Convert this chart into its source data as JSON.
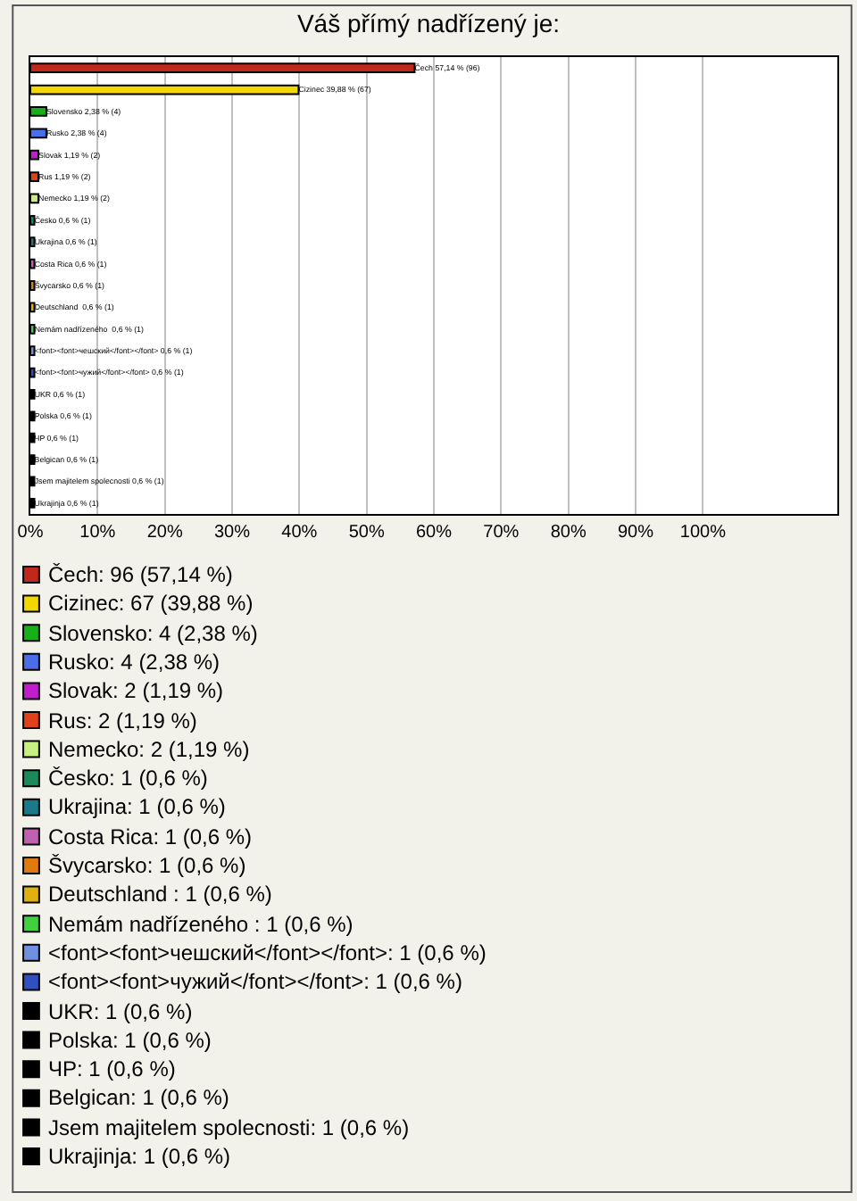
{
  "chart_data": {
    "type": "bar",
    "orientation": "horizontal",
    "title": "Váš přímý nadřízený je:",
    "categories": [
      null,
      null,
      null,
      null,
      null,
      null,
      null,
      null,
      null,
      null,
      null,
      null,
      null,
      null,
      null,
      null,
      null,
      null,
      null,
      null,
      null
    ],
    "series": [
      {
        "name": "Čech: 96 (57,14 %)",
        "color": "#c0281c",
        "values": [
          57.14,
          null,
          null,
          null,
          null,
          null,
          null,
          null,
          null,
          null,
          null,
          null,
          null,
          null,
          null,
          null,
          null,
          null,
          null,
          null,
          null
        ]
      },
      {
        "name": "Cizinec: 67 (39,88 %)",
        "color": "#f2d700",
        "values": [
          null,
          39.88,
          null,
          null,
          null,
          null,
          null,
          null,
          null,
          null,
          null,
          null,
          null,
          null,
          null,
          null,
          null,
          null,
          null,
          null,
          null
        ]
      },
      {
        "name": "Slovensko: 4 (2,38 %)",
        "color": "#18b018",
        "values": [
          null,
          null,
          2.38,
          null,
          null,
          null,
          null,
          null,
          null,
          null,
          null,
          null,
          null,
          null,
          null,
          null,
          null,
          null,
          null,
          null,
          null
        ]
      },
      {
        "name": "Rusko: 4 (2,38 %)",
        "color": "#4a6ee8",
        "values": [
          null,
          null,
          null,
          2.38,
          null,
          null,
          null,
          null,
          null,
          null,
          null,
          null,
          null,
          null,
          null,
          null,
          null,
          null,
          null,
          null,
          null
        ]
      },
      {
        "name": "Slovak: 2 (1,19 %)",
        "color": "#c21ccc",
        "values": [
          null,
          null,
          null,
          null,
          1.19,
          null,
          null,
          null,
          null,
          null,
          null,
          null,
          null,
          null,
          null,
          null,
          null,
          null,
          null,
          null,
          null
        ]
      },
      {
        "name": "Rus: 2 (1,19 %)",
        "color": "#e0401a",
        "values": [
          null,
          null,
          null,
          null,
          null,
          1.19,
          null,
          null,
          null,
          null,
          null,
          null,
          null,
          null,
          null,
          null,
          null,
          null,
          null,
          null,
          null
        ]
      },
      {
        "name": "Nemecko: 2 (1,19 %)",
        "color": "#c8f080",
        "values": [
          null,
          null,
          null,
          null,
          null,
          null,
          1.19,
          null,
          null,
          null,
          null,
          null,
          null,
          null,
          null,
          null,
          null,
          null,
          null,
          null,
          null
        ]
      },
      {
        "name": "Česko: 1 (0,6 %)",
        "color": "#1a8a5a",
        "values": [
          null,
          null,
          null,
          null,
          null,
          null,
          null,
          0.6,
          null,
          null,
          null,
          null,
          null,
          null,
          null,
          null,
          null,
          null,
          null,
          null,
          null
        ]
      },
      {
        "name": "Ukrajina: 1 (0,6 %)",
        "color": "#1a7a8a",
        "values": [
          null,
          null,
          null,
          null,
          null,
          null,
          null,
          null,
          0.6,
          null,
          null,
          null,
          null,
          null,
          null,
          null,
          null,
          null,
          null,
          null,
          null
        ]
      },
      {
        "name": "Costa Rica: 1 (0,6 %)",
        "color": "#c060b0",
        "values": [
          null,
          null,
          null,
          null,
          null,
          null,
          null,
          null,
          null,
          0.6,
          null,
          null,
          null,
          null,
          null,
          null,
          null,
          null,
          null,
          null,
          null
        ]
      },
      {
        "name": "Švycarsko: 1 (0,6 %)",
        "color": "#e07a10",
        "values": [
          null,
          null,
          null,
          null,
          null,
          null,
          null,
          null,
          null,
          null,
          0.6,
          null,
          null,
          null,
          null,
          null,
          null,
          null,
          null,
          null,
          null
        ]
      },
      {
        "name": "Deutschland : 1 (0,6 %)",
        "color": "#e0b010",
        "values": [
          null,
          null,
          null,
          null,
          null,
          null,
          null,
          null,
          null,
          null,
          null,
          0.6,
          null,
          null,
          null,
          null,
          null,
          null,
          null,
          null,
          null
        ]
      },
      {
        "name": "Nemám nadřízeného : 1 (0,6 %)",
        "color": "#40d040",
        "values": [
          null,
          null,
          null,
          null,
          null,
          null,
          null,
          null,
          null,
          null,
          null,
          null,
          0.6,
          null,
          null,
          null,
          null,
          null,
          null,
          null,
          null
        ]
      },
      {
        "name": "<font><font>чешский</font></font>: 1 (0,6 %)",
        "color": "#7090e0",
        "values": [
          null,
          null,
          null,
          null,
          null,
          null,
          null,
          null,
          null,
          null,
          null,
          null,
          null,
          0.6,
          null,
          null,
          null,
          null,
          null,
          null,
          null
        ]
      },
      {
        "name": "<font><font>чужий</font></font>: 1 (0,6 %)",
        "color": "#3050c0",
        "values": [
          null,
          null,
          null,
          null,
          null,
          null,
          null,
          null,
          null,
          null,
          null,
          null,
          null,
          null,
          0.6,
          null,
          null,
          null,
          null,
          null,
          null
        ]
      },
      {
        "name": "UKR: 1 (0,6 %)",
        "color": "#000000",
        "values": [
          null,
          null,
          null,
          null,
          null,
          null,
          null,
          null,
          null,
          null,
          null,
          null,
          null,
          null,
          null,
          0.6,
          null,
          null,
          null,
          null,
          null
        ]
      },
      {
        "name": "Polska: 1 (0,6 %)",
        "color": "#000000",
        "values": [
          null,
          null,
          null,
          null,
          null,
          null,
          null,
          null,
          null,
          null,
          null,
          null,
          null,
          null,
          null,
          null,
          0.6,
          null,
          null,
          null,
          null
        ]
      },
      {
        "name": "ЧP: 1 (0,6 %)",
        "color": "#000000",
        "values": [
          null,
          null,
          null,
          null,
          null,
          null,
          null,
          null,
          null,
          null,
          null,
          null,
          null,
          null,
          null,
          null,
          null,
          0.6,
          null,
          null,
          null
        ]
      },
      {
        "name": "Belgican: 1 (0,6 %)",
        "color": "#000000",
        "values": [
          null,
          null,
          null,
          null,
          null,
          null,
          null,
          null,
          null,
          null,
          null,
          null,
          null,
          null,
          null,
          null,
          null,
          null,
          0.6,
          null,
          null
        ]
      },
      {
        "name": "Jsem majitelem spolecnosti: 1 (0,6 %)",
        "color": "#000000",
        "values": [
          null,
          null,
          null,
          null,
          null,
          null,
          null,
          null,
          null,
          null,
          null,
          null,
          null,
          null,
          null,
          null,
          null,
          null,
          null,
          0.6,
          null
        ]
      },
      {
        "name": "Ukrajinja: 1 (0,6 %)",
        "color": "#000000",
        "values": [
          null,
          null,
          null,
          null,
          null,
          null,
          null,
          null,
          null,
          null,
          null,
          null,
          null,
          null,
          null,
          null,
          null,
          null,
          null,
          null,
          0.6
        ]
      }
    ],
    "value_labels": [
      "Čech 57,14 % (96)",
      "Cizinec 39,88 % (67)",
      "Slovensko 2,38 % (4)",
      "Rusko 2,38 % (4)",
      "Slovak 1,19 % (2)",
      "Rus 1,19 % (2)",
      "Nemecko 1,19 % (2)",
      "Česko 0,6 % (1)",
      "Ukrajina 0,6 % (1)",
      "Costa Rica 0,6 % (1)",
      "Švycarsko 0,6 % (1)",
      "Deutschland  0,6 % (1)",
      "Nemám nadřízeného  0,6 % (1)",
      "<font><font>чешский</font></font> 0,6 % (1)",
      "<font><font>чужий</font></font> 0,6 % (1)",
      "UKR 0,6 % (1)",
      "Polska 0,6 % (1)",
      "ЧP 0,6 % (1)",
      "Belgican 0,6 % (1)",
      "Jsem majitelem spolecnosti 0,6 % (1)",
      "Ukrajinja 0,6 % (1)"
    ],
    "xlim": [
      0,
      120
    ],
    "xticks": [
      {
        "value": 0,
        "label": "0%"
      },
      {
        "value": 10,
        "label": "10%"
      },
      {
        "value": 20,
        "label": "20%"
      },
      {
        "value": 30,
        "label": "30%"
      },
      {
        "value": 40,
        "label": "40%"
      },
      {
        "value": 50,
        "label": "50%"
      },
      {
        "value": 60,
        "label": "60%"
      },
      {
        "value": 70,
        "label": "70%"
      },
      {
        "value": 80,
        "label": "80%"
      },
      {
        "value": 90,
        "label": "90%"
      },
      {
        "value": 100,
        "label": "100%"
      }
    ],
    "grid": "x",
    "tick_labels": "x",
    "legend": "bottom"
  }
}
